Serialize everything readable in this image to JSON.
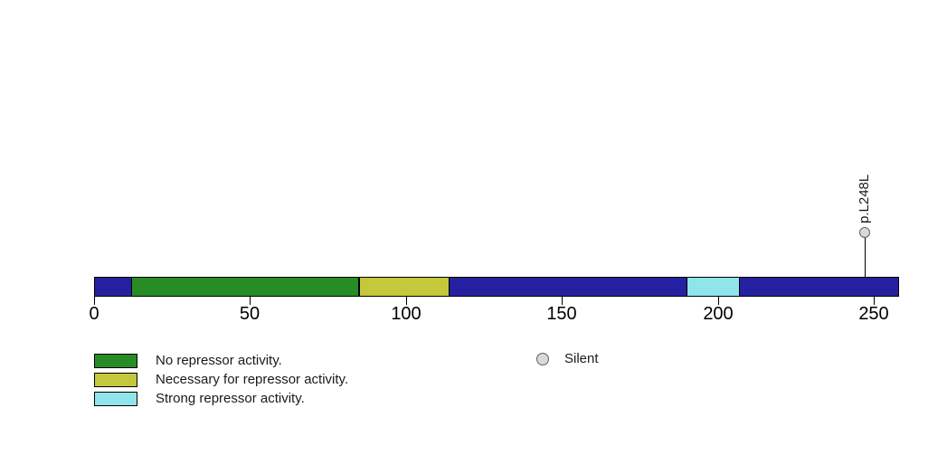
{
  "page": {
    "background": "#FFFFFF"
  },
  "chart_data": {
    "type": "protein-domain-lollipop",
    "title": "",
    "xlabel": "",
    "axis": {
      "min": 0,
      "max": 258,
      "ticks": [
        0,
        50,
        100,
        150,
        200,
        250
      ],
      "grid": false
    },
    "backbone": {
      "start": 0,
      "end": 258,
      "color": "#2420A0",
      "border_color": "#000000"
    },
    "domains": [
      {
        "label": "No repressor activity.",
        "start": 12,
        "end": 85,
        "color": "#278C26"
      },
      {
        "label": "Necessary for repressor activity.",
        "start": 85,
        "end": 114,
        "color": "#C6C83B"
      },
      {
        "label": "Strong repressor activity.",
        "start": 190,
        "end": 207,
        "color": "#8FE5E9"
      }
    ],
    "mutations": [
      {
        "label": "p.L248L",
        "position": 247,
        "category": "Silent",
        "color": "#D9D9D9"
      }
    ],
    "mutation_legend": {
      "label": "Silent",
      "color": "#D9D9D9"
    },
    "legend_position": "bottom-left"
  }
}
